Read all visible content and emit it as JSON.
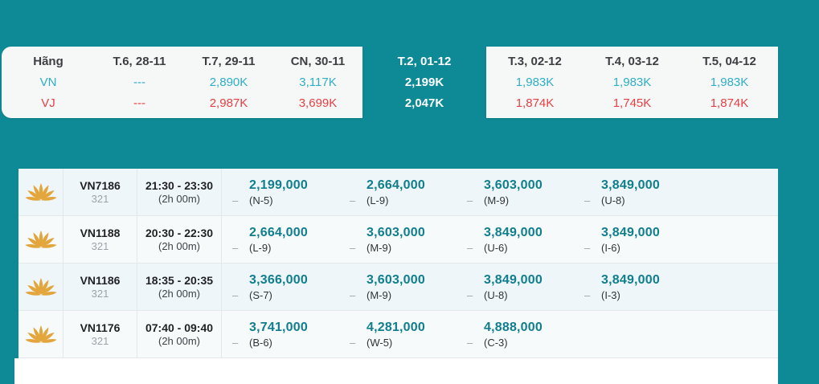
{
  "colors": {
    "page_teal": "#0E8A96",
    "bar_background": "#F6F7F7",
    "vn_color": "#2FAEC6",
    "vj_color": "#E64044",
    "price_teal": "#0F7E8D",
    "lotus_gold": "#E3A63C",
    "selected_text": "#FFFFFF"
  },
  "fare_calendar": {
    "header_label": "Hãng",
    "airlines": [
      {
        "code": "VN"
      },
      {
        "code": "VJ"
      }
    ],
    "days": [
      {
        "label": "T.6, 28-11",
        "vn": "---",
        "vj": "---",
        "selected": false
      },
      {
        "label": "T.7, 29-11",
        "vn": "2,890K",
        "vj": "2,987K",
        "selected": false
      },
      {
        "label": "CN, 30-11",
        "vn": "3,117K",
        "vj": "3,699K",
        "selected": false
      },
      {
        "label": "T.2, 01-12",
        "vn": "2,199K",
        "vj": "2,047K",
        "selected": true
      },
      {
        "label": "T.3, 02-12",
        "vn": "1,983K",
        "vj": "1,874K",
        "selected": false
      },
      {
        "label": "T.4, 03-12",
        "vn": "1,983K",
        "vj": "1,745K",
        "selected": false
      },
      {
        "label": "T.5, 04-12",
        "vn": "1,983K",
        "vj": "1,874K",
        "selected": false
      }
    ]
  },
  "flights": {
    "dash": "–",
    "airline_icon": "vietnam-airlines-lotus",
    "rows": [
      {
        "flight_no": "VN7186",
        "aircraft": "321",
        "time": "21:30 - 23:30",
        "duration": "(2h 00m)",
        "fares": [
          {
            "price": "2,199,000",
            "fare_class": "(N-5)"
          },
          {
            "price": "2,664,000",
            "fare_class": "(L-9)"
          },
          {
            "price": "3,603,000",
            "fare_class": "(M-9)"
          },
          {
            "price": "3,849,000",
            "fare_class": "(U-8)"
          }
        ]
      },
      {
        "flight_no": "VN1188",
        "aircraft": "321",
        "time": "20:30 - 22:30",
        "duration": "(2h 00m)",
        "fares": [
          {
            "price": "2,664,000",
            "fare_class": "(L-9)"
          },
          {
            "price": "3,603,000",
            "fare_class": "(M-9)"
          },
          {
            "price": "3,849,000",
            "fare_class": "(U-6)"
          },
          {
            "price": "3,849,000",
            "fare_class": "(I-6)"
          }
        ]
      },
      {
        "flight_no": "VN1186",
        "aircraft": "321",
        "time": "18:35 - 20:35",
        "duration": "(2h 00m)",
        "fares": [
          {
            "price": "3,366,000",
            "fare_class": "(S-7)"
          },
          {
            "price": "3,603,000",
            "fare_class": "(M-9)"
          },
          {
            "price": "3,849,000",
            "fare_class": "(U-8)"
          },
          {
            "price": "3,849,000",
            "fare_class": "(I-3)"
          }
        ]
      },
      {
        "flight_no": "VN1176",
        "aircraft": "321",
        "time": "07:40 - 09:40",
        "duration": "(2h 00m)",
        "fares": [
          {
            "price": "3,741,000",
            "fare_class": "(B-6)"
          },
          {
            "price": "4,281,000",
            "fare_class": "(W-5)"
          },
          {
            "price": "4,888,000",
            "fare_class": "(C-3)"
          }
        ]
      }
    ]
  }
}
